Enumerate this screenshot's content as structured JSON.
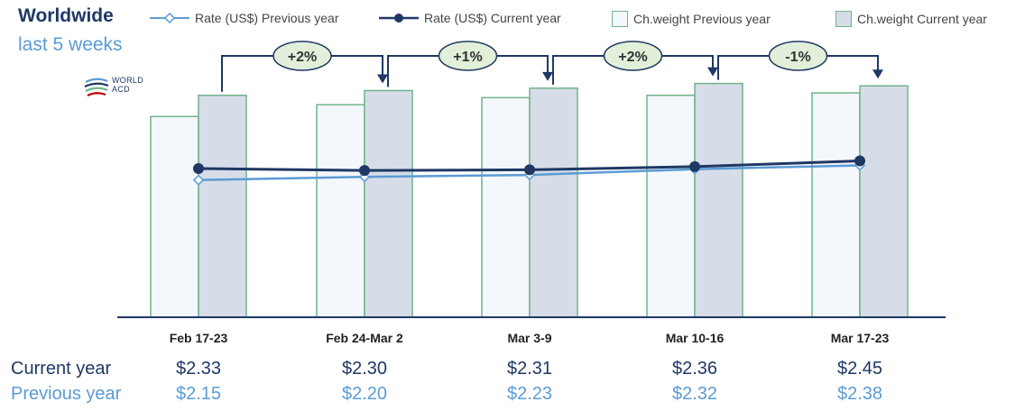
{
  "header": {
    "title": "Worldwide",
    "subtitle": "last 5 weeks"
  },
  "logo": {
    "line1": "WORLD",
    "line2": "ACD"
  },
  "legend": {
    "rate_prev": "Rate (US$) Previous year",
    "rate_cur": "Rate (US$) Current year",
    "weight_prev": "Ch.weight Previous year",
    "weight_cur": "Ch.weight Current year"
  },
  "colors": {
    "rate_cur": "#1f3864",
    "rate_prev": "#5b9bd5",
    "bar_border": "#70b48a",
    "bar_prev_fill": "#f4f7fb",
    "bar_cur_fill": "#d6dde8",
    "badge_fill": "#e2efd9",
    "badge_border": "#1f3864"
  },
  "chart_data": {
    "type": "bar",
    "categories": [
      "Feb 17-23",
      "Feb 24-Mar 2",
      "Mar 3-9",
      "Mar 10-16",
      "Mar 17-23"
    ],
    "series": [
      {
        "name": "Ch.weight Previous year",
        "values": [
          0.85,
          0.9,
          0.93,
          0.94,
          0.95
        ]
      },
      {
        "name": "Ch.weight Current year",
        "values": [
          0.94,
          0.96,
          0.97,
          0.99,
          0.98
        ]
      },
      {
        "name": "Rate (US$) Previous year",
        "values": [
          2.15,
          2.2,
          2.23,
          2.32,
          2.38
        ]
      },
      {
        "name": "Rate (US$) Current year",
        "values": [
          2.33,
          2.3,
          2.31,
          2.36,
          2.45
        ]
      }
    ],
    "week_changes": [
      "+2%",
      "+1%",
      "+2%",
      "-1%"
    ],
    "rate_range": [
      0,
      3.7
    ],
    "grid": false,
    "legend_position": "top"
  },
  "table": {
    "current_label": "Current year",
    "previous_label": "Previous year",
    "current": [
      "$2.33",
      "$2.30",
      "$2.31",
      "$2.36",
      "$2.45"
    ],
    "previous": [
      "$2.15",
      "$2.20",
      "$2.23",
      "$2.32",
      "$2.38"
    ]
  }
}
